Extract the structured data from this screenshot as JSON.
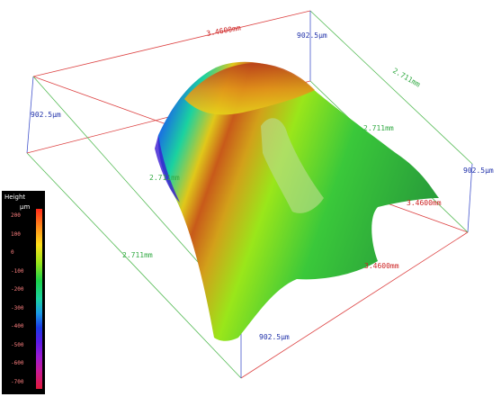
{
  "dimensions": {
    "top_red": "3.4600mm",
    "top_blue": "902.5µm",
    "left_blue": "902.5µm",
    "right_green_top": "2.711mm",
    "center_green": "2.711mm",
    "mid_green": "2.711mm",
    "left_green": "2.711mm",
    "right_blue": "902.5µm",
    "right_red": "3.4600mm",
    "bottom_red": "3.4600mm",
    "bottom_blue": "902.5µm"
  },
  "legend": {
    "title": "Height",
    "unit": "µm",
    "ticks": [
      "200",
      "100",
      "0",
      "-100",
      "-200",
      "-300",
      "-400",
      "-500",
      "-600",
      "-700"
    ]
  },
  "colors": {
    "red_axis": "#cc2222",
    "blue_axis": "#2233aa",
    "green_axis": "#33aa44"
  }
}
